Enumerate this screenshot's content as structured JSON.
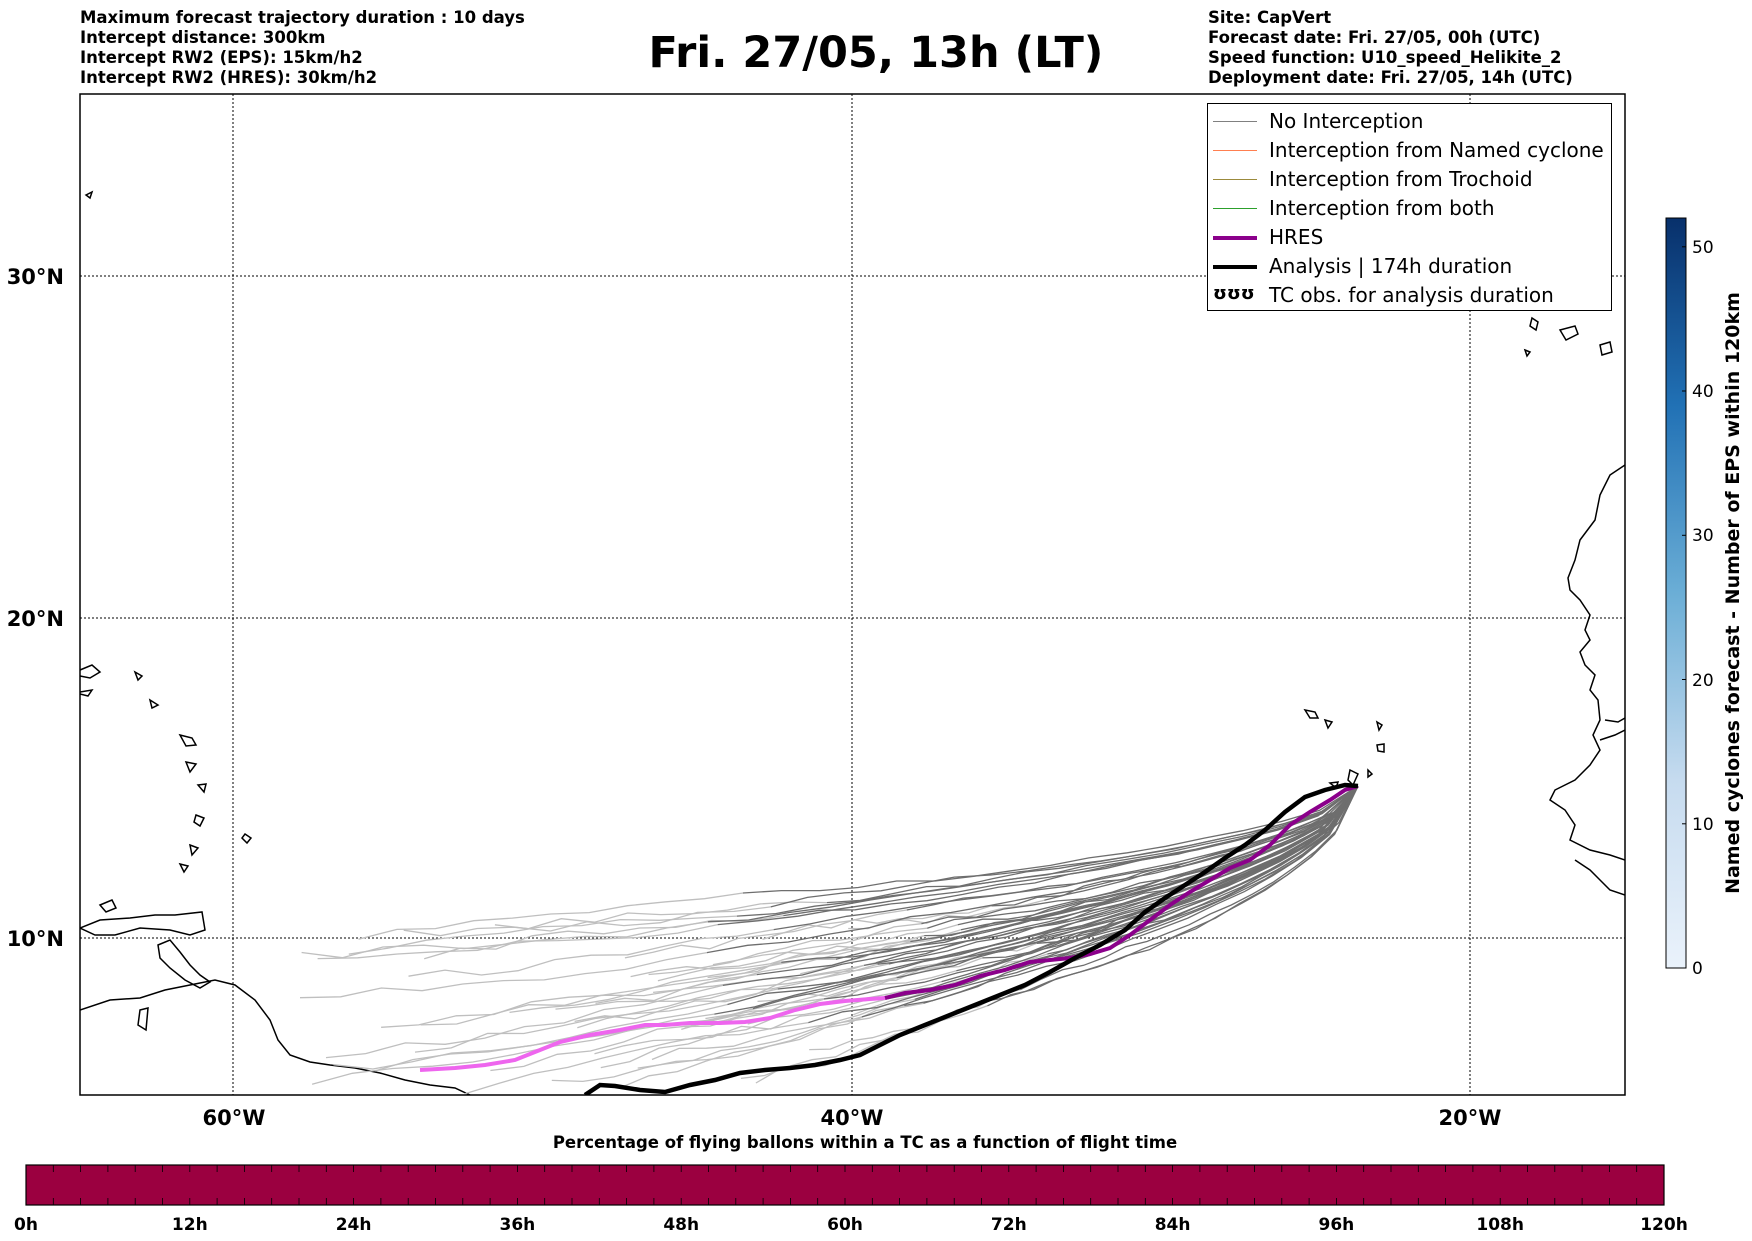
{
  "header_left": {
    "line1": "Maximum forecast trajectory duration : 10 days",
    "line2": "Intercept distance: 300km",
    "line3": "Intercept RW2 (EPS):  15km/h2",
    "line4": "Intercept RW2 (HRES): 30km/h2"
  },
  "header_right": {
    "line1": "Site: CapVert",
    "line2": "Forecast date: Fri. 27/05, 00h (UTC)",
    "line3": "Speed function: U10_speed_Helikite_2",
    "line4": "Deployment date: Fri. 27/05, 14h (UTC)"
  },
  "title": "Fri. 27/05, 13h (LT)",
  "map": {
    "lat_ticks": [
      "30°N",
      "20°N",
      "10°N"
    ],
    "lon_ticks": [
      "60°W",
      "40°W",
      "20°W"
    ],
    "lon_range": [
      -65,
      -15
    ],
    "lat_range": [
      5.4,
      34.7
    ],
    "grid": true
  },
  "legend": {
    "items": [
      {
        "label": "No Interception",
        "color": "#808080"
      },
      {
        "label": "Interception from Named cyclone",
        "color": "#ff7f50"
      },
      {
        "label": "Interception from Trochoid",
        "color": "#9b8a3c"
      },
      {
        "label": "Interception from both",
        "color": "#2ca02c"
      },
      {
        "label": "HRES",
        "color": "#8b008b"
      },
      {
        "label": "Analysis | 174h duration",
        "color": "#000000"
      },
      {
        "label": "TC obs. for analysis duration",
        "symbol": "ʊʊʊ"
      }
    ]
  },
  "colorbar_right": {
    "title": "Named cyclones forecast - Number of EPS within 120km",
    "ticks": [
      "0",
      "10",
      "20",
      "30",
      "40",
      "50"
    ],
    "range": [
      0,
      52
    ]
  },
  "colorbar_bottom": {
    "title": "Percentage of flying ballons within a TC as a function of flight time",
    "ticks": [
      "0h",
      "12h",
      "24h",
      "36h",
      "48h",
      "60h",
      "72h",
      "84h",
      "96h",
      "108h",
      "120h"
    ],
    "color": "#9b0040"
  }
}
